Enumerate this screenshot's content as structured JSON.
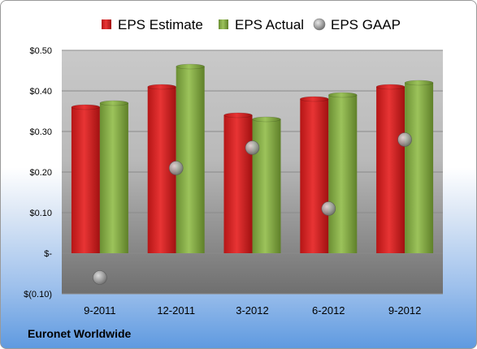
{
  "chart_data": {
    "type": "bar",
    "categories": [
      "9-2011",
      "12-2011",
      "3-2012",
      "6-2012",
      "9-2012"
    ],
    "series": [
      {
        "name": "EPS Estimate",
        "type": "bar",
        "color": "#cc2222",
        "values": [
          0.36,
          0.41,
          0.34,
          0.38,
          0.41
        ]
      },
      {
        "name": "EPS Actual",
        "type": "bar",
        "color": "#7fa642",
        "values": [
          0.37,
          0.46,
          0.33,
          0.39,
          0.42
        ]
      },
      {
        "name": "EPS GAAP",
        "type": "scatter",
        "color": "#9a9a9a",
        "values": [
          -0.06,
          0.21,
          0.26,
          0.11,
          0.28
        ]
      }
    ],
    "y_ticks": [
      {
        "value": 0.5,
        "label": "$0.50"
      },
      {
        "value": 0.4,
        "label": "$0.40"
      },
      {
        "value": 0.3,
        "label": "$0.30"
      },
      {
        "value": 0.2,
        "label": "$0.20"
      },
      {
        "value": 0.1,
        "label": "$0.10"
      },
      {
        "value": 0,
        "label": "$-"
      },
      {
        "value": -0.1,
        "label": "$(0.10)"
      }
    ],
    "ylim": [
      -0.1,
      0.5
    ],
    "grid": true,
    "legend_position": "top"
  },
  "footer": {
    "company": "Euronet Worldwide"
  }
}
